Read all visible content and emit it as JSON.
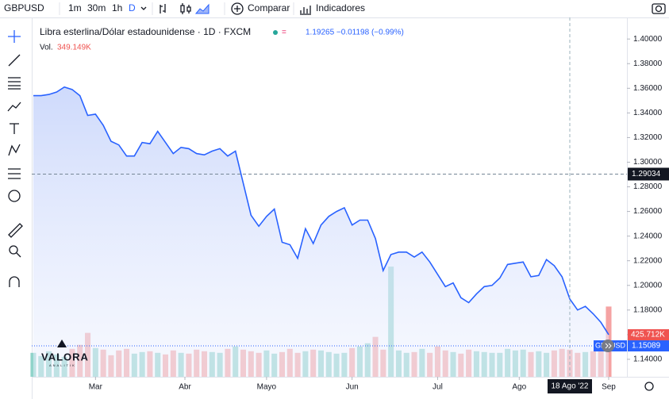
{
  "toolbar": {
    "symbol": "GBPUSD",
    "intervals": [
      "1m",
      "30m",
      "1h",
      "D"
    ],
    "compare": "Comparar",
    "indicators": "Indicadores"
  },
  "chart_data": {
    "type": "line",
    "title": "Libra esterlina/Dólar estadounidense · 1D · FXCM",
    "quote": "1.19265 −0.01198 (−0.99%)",
    "volume_label": "Vol.",
    "volume_value": {
      "value": 349.149,
      "label": "349.149K"
    },
    "logo": "VALORA",
    "logo_sub": "ANALITIK",
    "x": [
      0,
      2,
      4,
      6,
      8,
      10,
      12,
      14,
      16,
      18,
      20,
      22,
      24,
      26,
      28,
      30,
      32,
      34,
      36,
      38,
      40,
      42,
      44,
      46,
      48,
      50,
      52,
      54,
      56,
      58,
      60,
      62,
      64,
      66,
      68,
      70,
      72,
      74,
      76,
      78,
      80,
      82,
      84,
      86,
      88,
      90,
      92,
      94,
      96,
      98,
      100,
      102,
      104,
      106,
      108,
      110,
      112,
      114,
      116,
      118,
      120,
      122,
      124,
      126,
      128,
      130,
      132,
      134,
      136,
      138,
      140,
      142,
      144,
      146,
      148
    ],
    "series": [
      {
        "name": "GBPUSD",
        "color": "#2962ff",
        "values": [
          1.354,
          1.354,
          1.355,
          1.357,
          1.361,
          1.359,
          1.354,
          1.338,
          1.339,
          1.33,
          1.317,
          1.314,
          1.305,
          1.305,
          1.316,
          1.315,
          1.325,
          1.316,
          1.307,
          1.312,
          1.311,
          1.307,
          1.306,
          1.309,
          1.311,
          1.305,
          1.309,
          1.283,
          1.257,
          1.248,
          1.256,
          1.262,
          1.235,
          1.233,
          1.222,
          1.246,
          1.234,
          1.249,
          1.256,
          1.26,
          1.263,
          1.249,
          1.253,
          1.253,
          1.238,
          1.212,
          1.225,
          1.227,
          1.227,
          1.223,
          1.227,
          1.219,
          1.209,
          1.199,
          1.202,
          1.19,
          1.186,
          1.193,
          1.199,
          1.2,
          1.206,
          1.217,
          1.218,
          1.219,
          1.207,
          1.208,
          1.221,
          1.216,
          1.207,
          1.189,
          1.18,
          1.183,
          1.177,
          1.17,
          1.16
        ]
      },
      {
        "name": "Vol.",
        "axis": "y2",
        "up_color": "#8fd3ca",
        "down_color": "#f5a3a3",
        "values": [
          300,
          260,
          320,
          280,
          250,
          350,
          400,
          550,
          360,
          340,
          270,
          330,
          350,
          290,
          310,
          320,
          300,
          280,
          330,
          300,
          290,
          340,
          320,
          310,
          300,
          350,
          380,
          340,
          320,
          300,
          330,
          290,
          310,
          350,
          300,
          320,
          340,
          330,
          310,
          290,
          300,
          360,
          380,
          420,
          500,
          340,
          1380,
          330,
          300,
          310,
          350,
          300,
          380,
          330,
          310,
          290,
          340,
          320,
          310,
          300,
          300,
          350,
          330,
          340,
          310,
          320,
          300,
          330,
          350,
          340,
          300,
          310,
          320,
          360,
          880
        ]
      }
    ],
    "xlim": [
      -0.4,
      152.7
    ],
    "xticks": [
      {
        "value": 16,
        "label": "Mar"
      },
      {
        "value": 39,
        "label": "Abr"
      },
      {
        "value": 60,
        "label": "Mayo"
      },
      {
        "value": 82,
        "label": "Jun"
      },
      {
        "value": 104,
        "label": "Jul"
      },
      {
        "value": 125,
        "label": "Ago"
      },
      {
        "value": 148,
        "label": "Sep"
      }
    ],
    "ylim": [
      1.1258,
      1.4175
    ],
    "yticks": [
      {
        "value": 1.4,
        "label": "1.40000"
      },
      {
        "value": 1.38,
        "label": "1.38000"
      },
      {
        "value": 1.36,
        "label": "1.36000"
      },
      {
        "value": 1.34,
        "label": "1.34000"
      },
      {
        "value": 1.32,
        "label": "1.32000"
      },
      {
        "value": 1.3,
        "label": "1.30000"
      },
      {
        "value": 1.28,
        "label": "1.28000"
      },
      {
        "value": 1.26,
        "label": "1.26000"
      },
      {
        "value": 1.24,
        "label": "1.24000"
      },
      {
        "value": 1.22,
        "label": "1.22000"
      },
      {
        "value": 1.2,
        "label": "1.20000"
      },
      {
        "value": 1.18,
        "label": "1.18000"
      },
      {
        "value": 1.16,
        "label": "1.16000"
      },
      {
        "value": 1.14,
        "label": "1.14000"
      }
    ],
    "y2lim": [
      0,
      4500
    ],
    "crosshair": {
      "x": {
        "value": 138,
        "label": "18 Ago '22"
      },
      "y": 1.29034
    },
    "last_price": 1.15089,
    "last_volume": {
      "value": 425.712,
      "label": "425.712K"
    }
  }
}
